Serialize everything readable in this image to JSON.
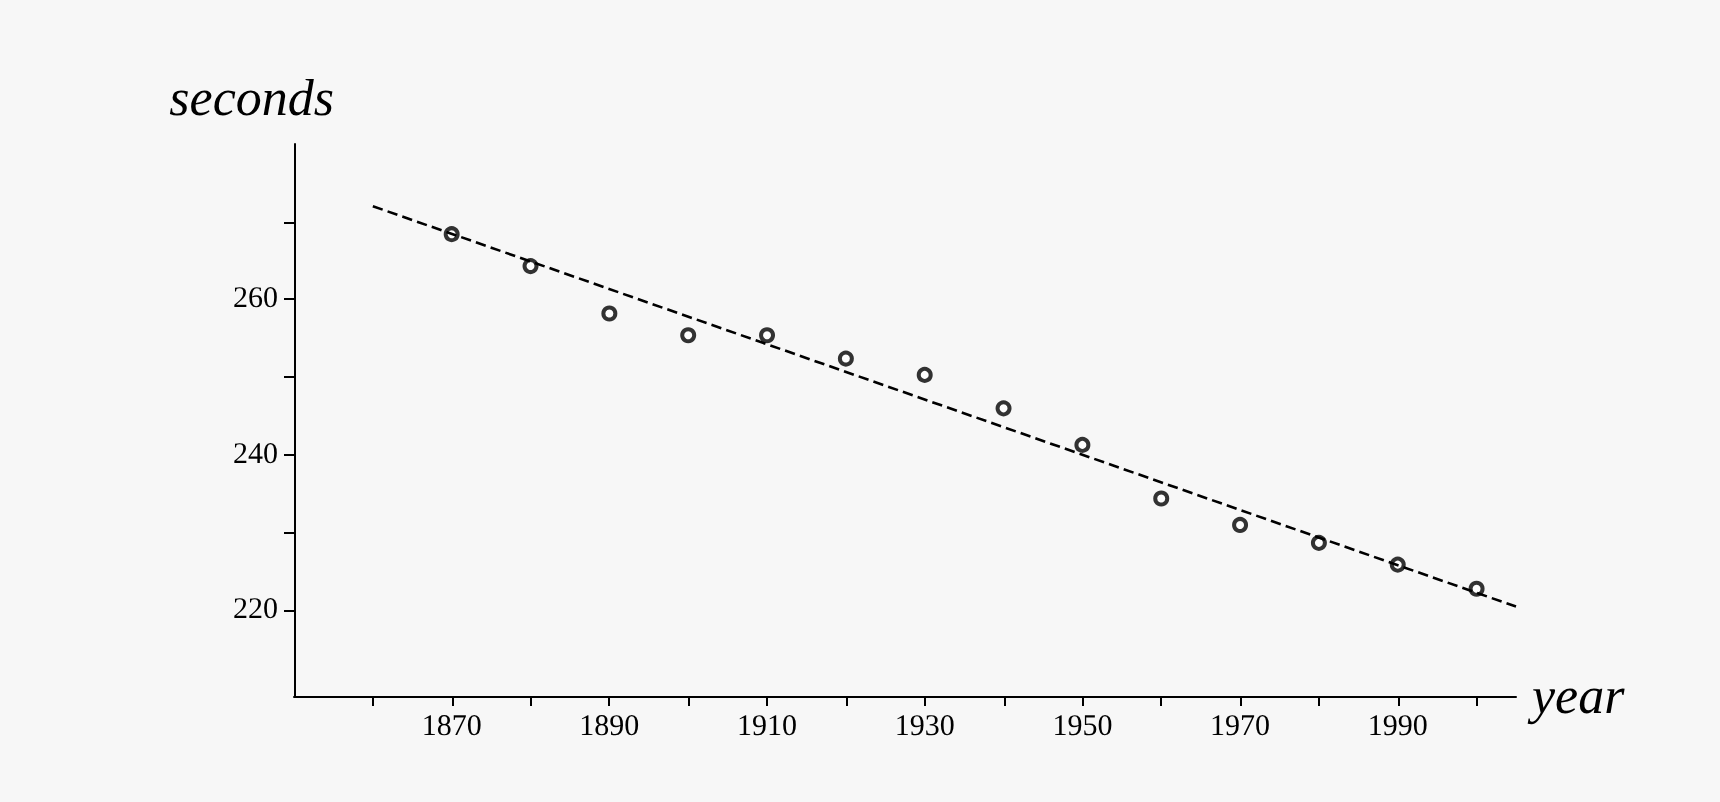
{
  "chart_data": {
    "type": "scatter",
    "xlabel": "year",
    "ylabel": "seconds",
    "grid": false,
    "xlim": [
      1850,
      2005
    ],
    "ylim": [
      209,
      280
    ],
    "xticks": [
      {
        "value": 1860,
        "label": null
      },
      1870,
      {
        "value": 1880,
        "label": null
      },
      1890,
      {
        "value": 1900,
        "label": null
      },
      1910,
      {
        "value": 1920,
        "label": null
      },
      1930,
      {
        "value": 1940,
        "label": null
      },
      1950,
      {
        "value": 1960,
        "label": null
      },
      1970,
      {
        "value": 1980,
        "label": null
      },
      1990,
      {
        "value": 2000,
        "label": null
      }
    ],
    "yticks": [
      220,
      {
        "value": 230,
        "label": null
      },
      240,
      {
        "value": 250,
        "label": null
      },
      260,
      {
        "value": 270,
        "label": null
      }
    ],
    "series": [
      {
        "marker": "circle",
        "color": "#000000",
        "x": [
          1870,
          1880,
          1890,
          1900,
          1910,
          1920,
          1930,
          1940,
          1950,
          1960,
          1970,
          1980,
          1990,
          2000
        ],
        "values": [
          268.4,
          264.3,
          258.2,
          255.4,
          255.4,
          252.4,
          250.3,
          246.0,
          241.3,
          234.4,
          231.0,
          228.7,
          225.9,
          222.8
        ]
      },
      {
        "type": "line",
        "marker": "none",
        "line_style": "dashed",
        "color": "#000000",
        "x": [
          1860,
          2005
        ],
        "values": [
          272,
          220.5
        ]
      }
    ]
  }
}
